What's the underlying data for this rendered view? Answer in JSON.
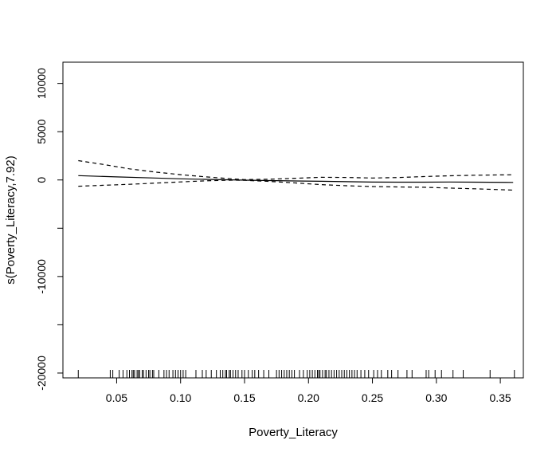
{
  "chart_data": {
    "type": "line",
    "title": "",
    "xlabel": "Poverty_Literacy",
    "ylabel": "s(Poverty_Literacy,7.92)",
    "xlim": [
      0.008,
      0.368
    ],
    "ylim": [
      -20500,
      12200
    ],
    "x_ticks": [
      0.05,
      0.1,
      0.15,
      0.2,
      0.25,
      0.3,
      0.35
    ],
    "x_tick_labels": [
      "0.05",
      "0.10",
      "0.15",
      "0.20",
      "0.25",
      "0.30",
      "0.35"
    ],
    "y_ticks": [
      -20000,
      -15000,
      -10000,
      -5000,
      0,
      5000,
      10000
    ],
    "y_tick_labels": [
      "-20000",
      "",
      "-10000",
      "",
      "0",
      "5000",
      "10000"
    ],
    "grid": false,
    "legend": "none",
    "series": [
      {
        "role": "estimate",
        "style": "solid",
        "x": [
          0.02,
          0.05,
          0.08,
          0.1,
          0.12,
          0.14,
          0.15,
          0.17,
          0.19,
          0.21,
          0.23,
          0.25,
          0.27,
          0.29,
          0.31,
          0.33,
          0.36
        ],
        "y": [
          450,
          320,
          200,
          120,
          60,
          10,
          -20,
          -60,
          -100,
          -140,
          -180,
          -220,
          -230,
          -225,
          -215,
          -230,
          -250
        ]
      },
      {
        "role": "upper",
        "style": "dashed",
        "x": [
          0.02,
          0.04,
          0.06,
          0.08,
          0.1,
          0.12,
          0.14,
          0.15,
          0.17,
          0.19,
          0.21,
          0.23,
          0.25,
          0.27,
          0.29,
          0.31,
          0.33,
          0.36
        ],
        "y": [
          2000,
          1600,
          1150,
          820,
          550,
          320,
          120,
          40,
          80,
          180,
          280,
          260,
          200,
          250,
          350,
          430,
          490,
          540
        ]
      },
      {
        "role": "lower",
        "style": "dashed",
        "x": [
          0.02,
          0.04,
          0.06,
          0.08,
          0.1,
          0.12,
          0.14,
          0.15,
          0.17,
          0.19,
          0.21,
          0.23,
          0.25,
          0.27,
          0.29,
          0.31,
          0.33,
          0.36
        ],
        "y": [
          -650,
          -550,
          -450,
          -330,
          -200,
          -90,
          -20,
          -40,
          -150,
          -310,
          -480,
          -600,
          -680,
          -720,
          -760,
          -840,
          -910,
          -1050
        ]
      }
    ],
    "rug_x": [
      0.02,
      0.045,
      0.047,
      0.052,
      0.055,
      0.058,
      0.06,
      0.062,
      0.063,
      0.064,
      0.066,
      0.067,
      0.068,
      0.07,
      0.071,
      0.073,
      0.075,
      0.076,
      0.078,
      0.079,
      0.083,
      0.087,
      0.089,
      0.091,
      0.094,
      0.096,
      0.098,
      0.1,
      0.102,
      0.104,
      0.112,
      0.117,
      0.12,
      0.124,
      0.128,
      0.131,
      0.133,
      0.135,
      0.136,
      0.138,
      0.139,
      0.141,
      0.143,
      0.145,
      0.148,
      0.15,
      0.153,
      0.156,
      0.158,
      0.161,
      0.165,
      0.169,
      0.175,
      0.177,
      0.179,
      0.181,
      0.183,
      0.185,
      0.187,
      0.189,
      0.193,
      0.196,
      0.199,
      0.201,
      0.203,
      0.205,
      0.207,
      0.208,
      0.209,
      0.211,
      0.213,
      0.214,
      0.216,
      0.218,
      0.22,
      0.222,
      0.224,
      0.226,
      0.228,
      0.23,
      0.232,
      0.234,
      0.236,
      0.238,
      0.241,
      0.244,
      0.247,
      0.251,
      0.254,
      0.257,
      0.262,
      0.265,
      0.27,
      0.277,
      0.281,
      0.292,
      0.294,
      0.299,
      0.304,
      0.313,
      0.321,
      0.342,
      0.361
    ]
  }
}
